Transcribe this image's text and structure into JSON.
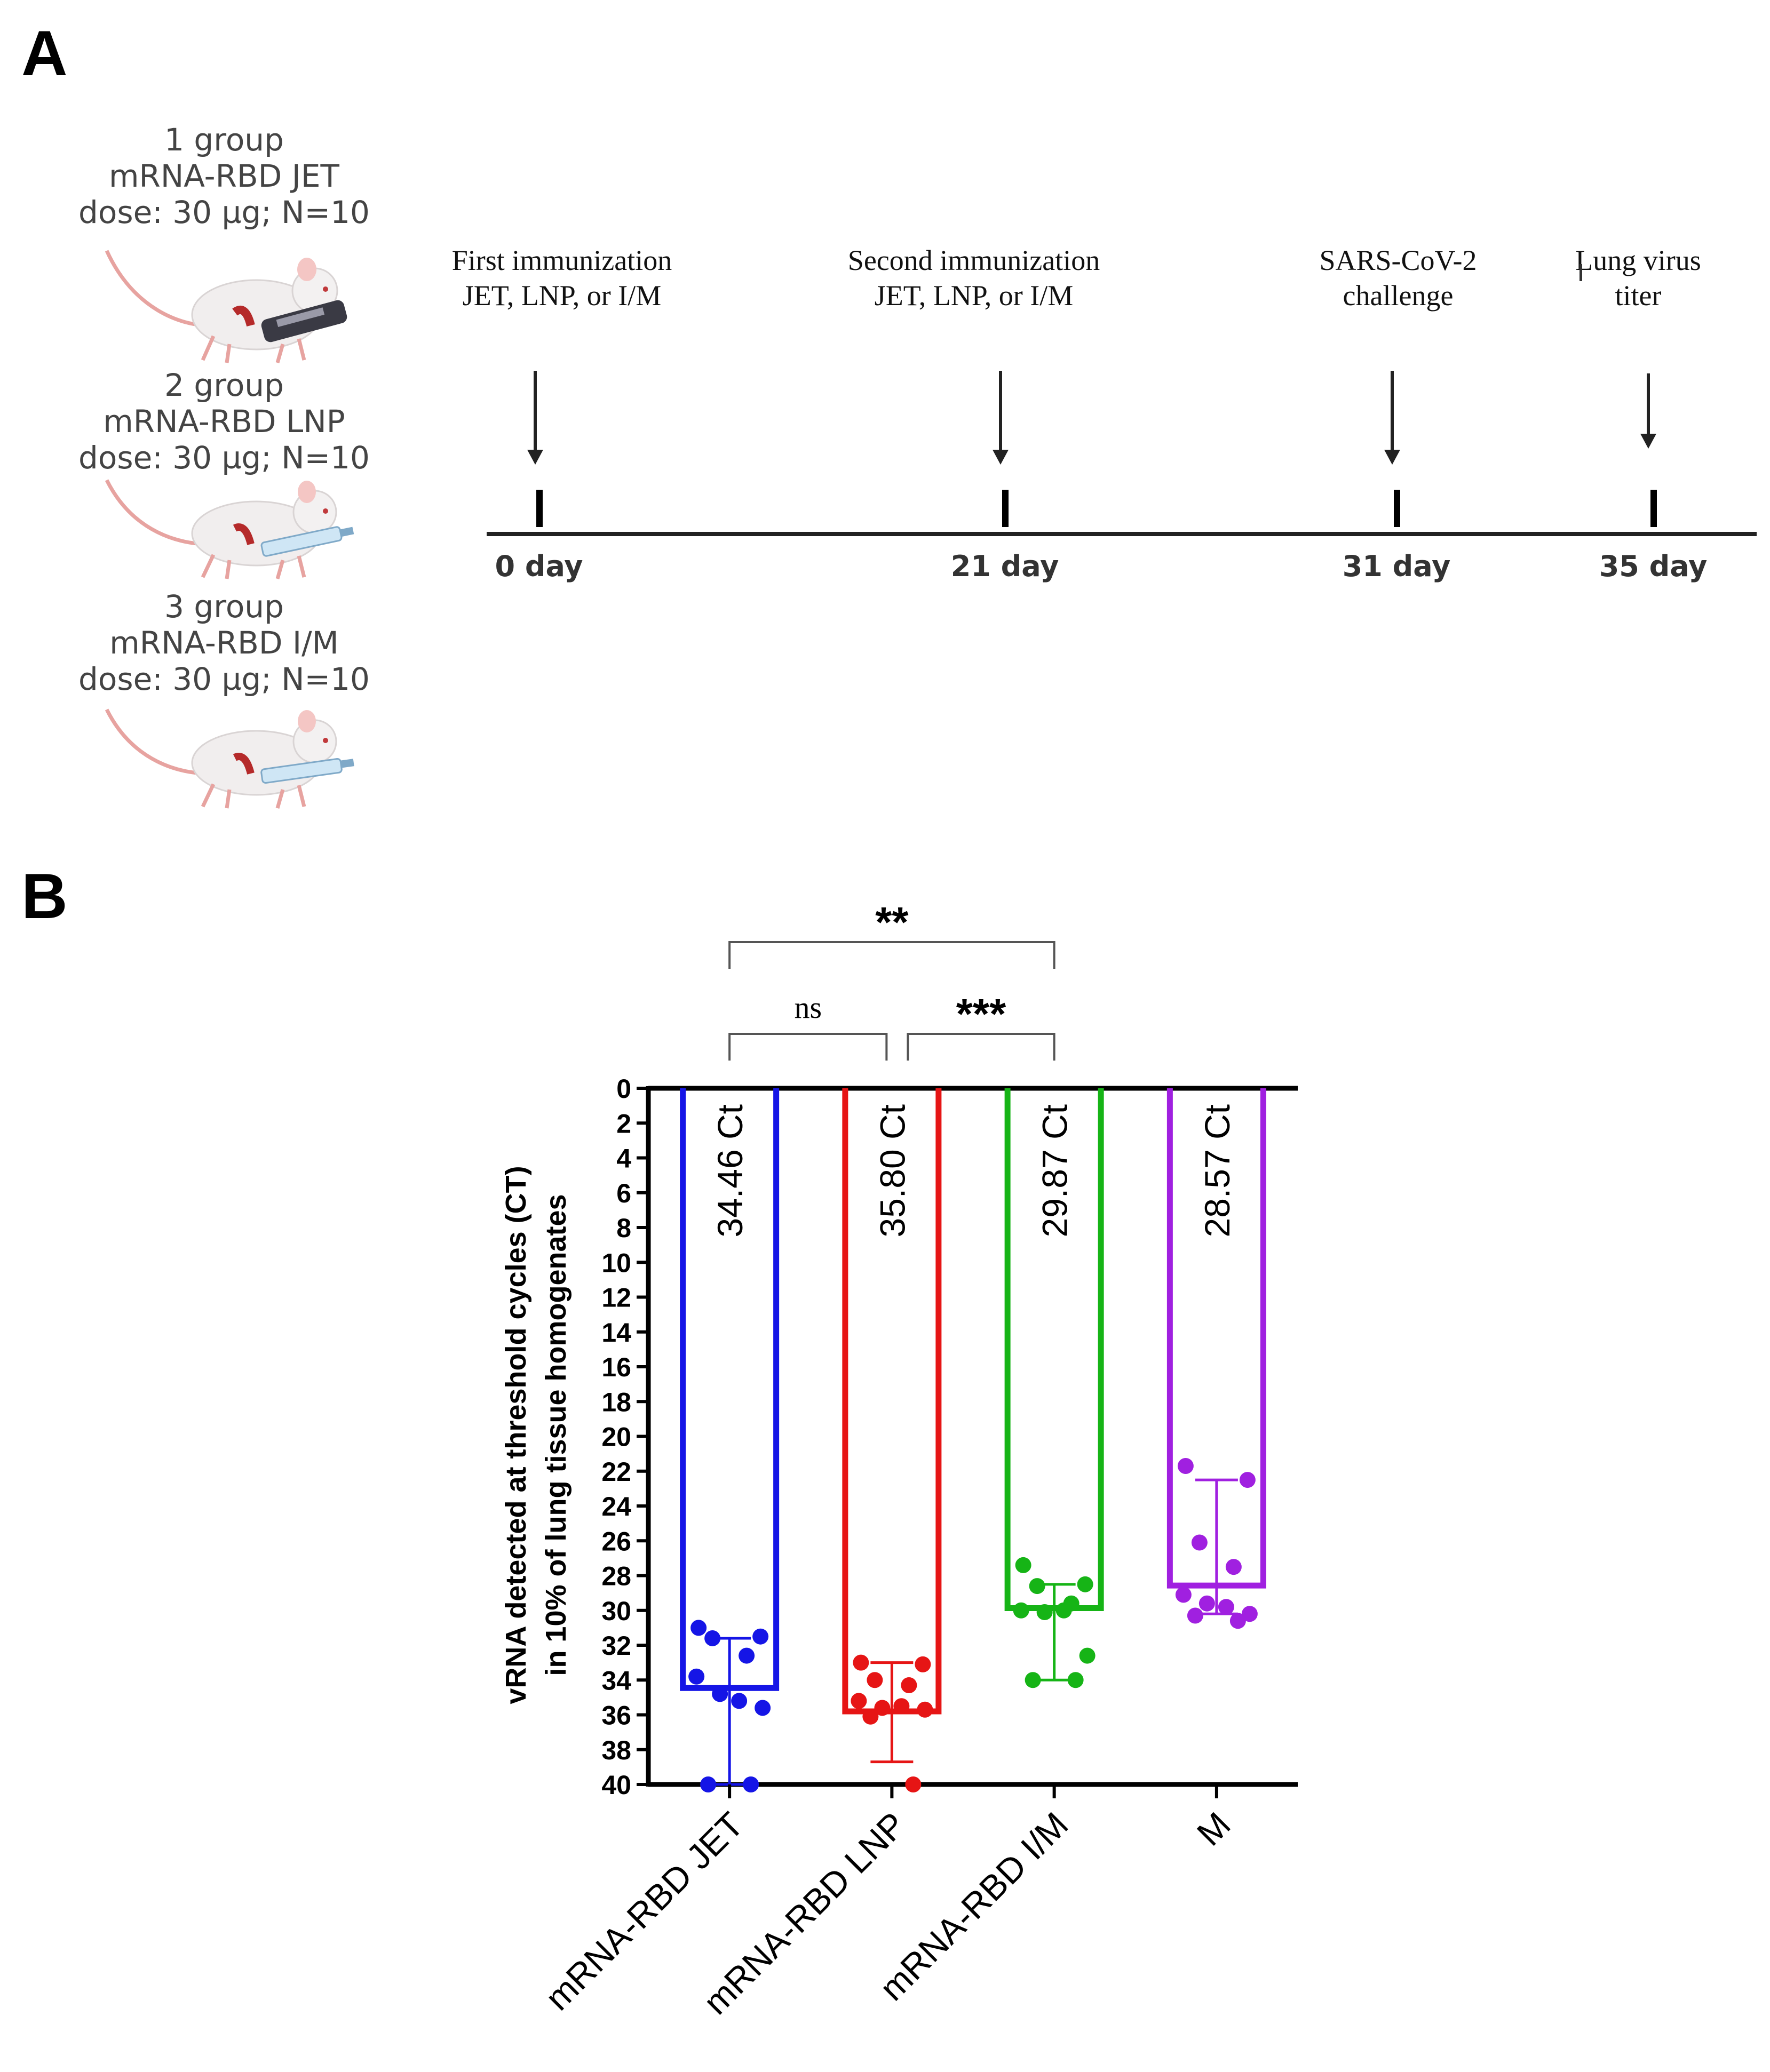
{
  "panel_a": {
    "label": "A",
    "groups": [
      {
        "line1": "1 group",
        "line2": "mRNA-RBD JET",
        "line3": "dose: 30 µg; N=10",
        "device": "jet-injector"
      },
      {
        "line1": "2 group",
        "line2": "mRNA-RBD LNP",
        "line3": "dose: 30 µg; N=10",
        "device": "syringe"
      },
      {
        "line1": "3 group",
        "line2": "mRNA-RBD I/M",
        "line3": "dose: 30 µg; N=10",
        "device": "syringe"
      }
    ],
    "timeline": {
      "events": [
        {
          "line1": "First immunization",
          "line2": "JET, LNP, or I/M",
          "day": "0 day"
        },
        {
          "line1": "Second immunization",
          "line2": "JET, LNP, or I/M",
          "day": "21 day"
        },
        {
          "line1": "SARS-CoV-2",
          "line2": "challenge",
          "day": "31 day"
        },
        {
          "line1": "Lung virus",
          "line2": "titer",
          "day": "35 day"
        }
      ]
    }
  },
  "panel_b": {
    "label": "B"
  },
  "chart_data": {
    "type": "bar",
    "title": "",
    "xlabel": "",
    "ylabel_line1": "vRNA detected at threshold cycles (CT)",
    "ylabel_line2": "in 10% of lung tissue homogenates",
    "y_axis_inverted": true,
    "ylim": [
      0,
      40
    ],
    "y_ticks": [
      0,
      2,
      4,
      6,
      8,
      10,
      12,
      14,
      16,
      18,
      20,
      22,
      24,
      26,
      28,
      30,
      32,
      34,
      36,
      38,
      40
    ],
    "categories": [
      "mRNA-RBD JET",
      "mRNA-RBD LNP",
      "mRNA-RBD I/M",
      "M"
    ],
    "values": [
      34.46,
      35.8,
      29.87,
      28.57
    ],
    "bar_labels": [
      "34.46 Ct",
      "35.80 Ct",
      "29.87 Ct",
      "28.57 Ct"
    ],
    "colors": [
      "#1515e6",
      "#e61515",
      "#16b416",
      "#a020e0"
    ],
    "error_bars": [
      {
        "low": 31.6,
        "high": 40
      },
      {
        "low": 33.0,
        "high": 38.7
      },
      {
        "low": 28.5,
        "high": 34.0
      },
      {
        "low": 22.5,
        "high": 30.2
      }
    ],
    "points": [
      [
        31.0,
        31.5,
        31.6,
        32.6,
        33.8,
        34.8,
        35.2,
        35.6,
        40.0,
        40.0
      ],
      [
        33.0,
        33.1,
        34.0,
        34.3,
        35.2,
        35.6,
        35.5,
        35.7,
        36.1,
        40.0
      ],
      [
        27.4,
        28.5,
        28.6,
        29.6,
        30.0,
        30.1,
        30.0,
        32.6,
        34.0,
        34.0
      ],
      [
        21.7,
        22.5,
        26.1,
        27.5,
        29.1,
        29.6,
        29.8,
        30.2,
        30.3,
        30.6
      ]
    ],
    "significance": [
      {
        "from": 0,
        "to": 1,
        "label": "ns",
        "level": 1
      },
      {
        "from": 1,
        "to": 2,
        "label": "***",
        "level": 1
      },
      {
        "from": 0,
        "to": 2,
        "label": "**",
        "level": 2
      }
    ]
  }
}
